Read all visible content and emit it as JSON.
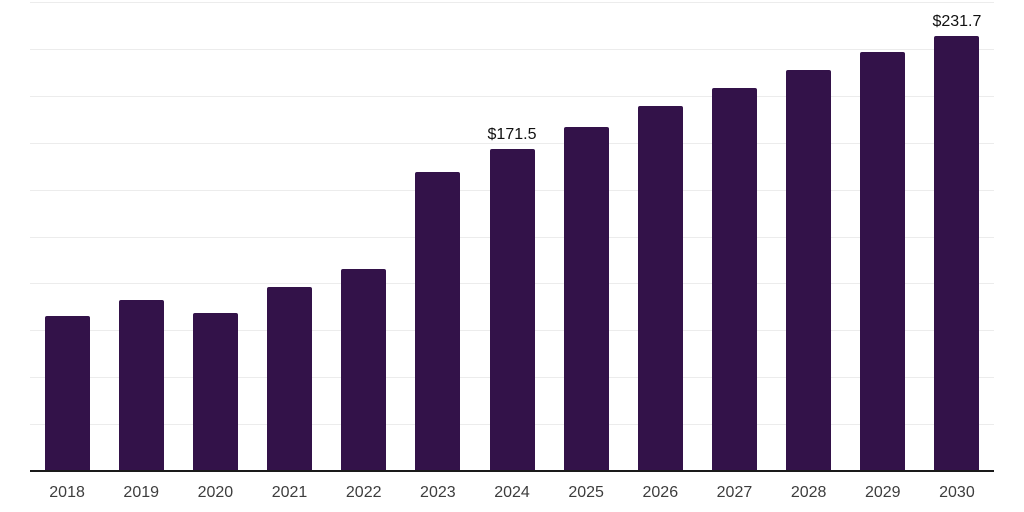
{
  "chart_data": {
    "type": "bar",
    "title": "",
    "xlabel": "",
    "ylabel": "",
    "categories": [
      "2018",
      "2019",
      "2020",
      "2021",
      "2022",
      "2023",
      "2024",
      "2025",
      "2026",
      "2027",
      "2028",
      "2029",
      "2030"
    ],
    "values": [
      82.5,
      91.3,
      84.3,
      98.1,
      107.7,
      159.2,
      171.5,
      183.6,
      194.4,
      204.1,
      213.9,
      223.1,
      231.7
    ],
    "data_labels": {
      "2024": "$171.5",
      "2030": "$231.7"
    },
    "ylim": [
      0,
      250
    ],
    "gridline_step": 25,
    "grid": true,
    "legend": "none",
    "y_axis_labels_visible": false,
    "colors": {
      "bar": "#331249",
      "axis": "#1a1a1a",
      "gridline": "#ececec",
      "tick_label": "#3d3d3d",
      "data_label": "#111111",
      "background": "#ffffff"
    }
  }
}
